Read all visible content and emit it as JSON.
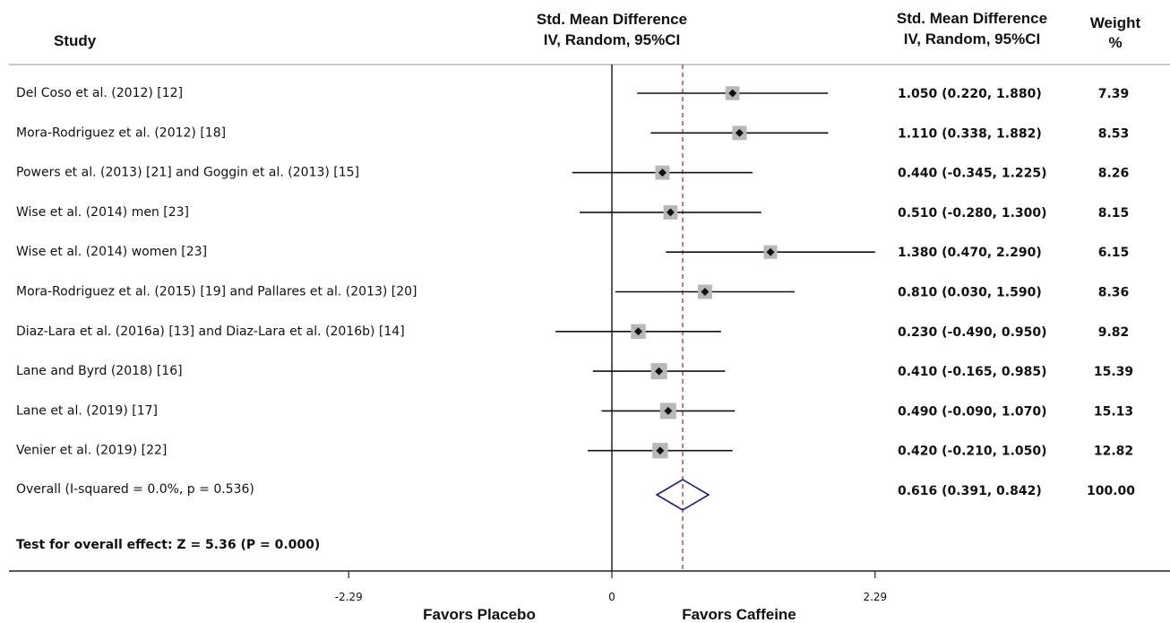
{
  "headers": {
    "study": "Study",
    "plot_line1": "Std. Mean Difference",
    "plot_line2": "IV, Random, 95%CI",
    "est_line1": "Std. Mean Difference",
    "est_line2": "IV, Random, 95%CI",
    "weight_line1": "Weight",
    "weight_line2": "%"
  },
  "footer": {
    "test_overall": "Test for overall effect: Z = 5.36 (P = 0.000)",
    "favors_left": "Favors Placebo",
    "favors_right": "Favors Caffeine"
  },
  "chart_data": {
    "type": "forest",
    "xaxis": {
      "ticks": [
        -2.29,
        0,
        2.29
      ],
      "tick_labels": [
        "-2.29",
        "0",
        "2.29"
      ],
      "null_line": 0,
      "display_range": [
        -2.29,
        2.29
      ]
    },
    "studies": [
      {
        "name": "Del Coso et al. (2012)  [12]",
        "est": 1.05,
        "lo": 0.22,
        "hi": 1.88,
        "est_text": "1.050 (0.220, 1.880)",
        "weight": "7.39"
      },
      {
        "name": "Mora-Rodriguez et al. (2012) [18]",
        "est": 1.11,
        "lo": 0.338,
        "hi": 1.882,
        "est_text": "1.110 (0.338, 1.882)",
        "weight": "8.53"
      },
      {
        "name": "Powers et al. (2013) [21] and Goggin et al. (2013) [15]",
        "est": 0.44,
        "lo": -0.345,
        "hi": 1.225,
        "est_text": "0.440 (-0.345, 1.225)",
        "weight": "8.26"
      },
      {
        "name": "Wise et al. (2014) men [23]",
        "est": 0.51,
        "lo": -0.28,
        "hi": 1.3,
        "est_text": "0.510 (-0.280, 1.300)",
        "weight": "8.15"
      },
      {
        "name": "Wise et al. (2014) women [23]",
        "est": 1.38,
        "lo": 0.47,
        "hi": 2.29,
        "est_text": "1.380 (0.470, 2.290)",
        "weight": "6.15"
      },
      {
        "name": "Mora-Rodriguez et al. (2015) [19] and Pallares et al. (2013) [20]",
        "est": 0.81,
        "lo": 0.03,
        "hi": 1.59,
        "est_text": "0.810 (0.030, 1.590)",
        "weight": "8.36"
      },
      {
        "name": "Diaz-Lara et al. (2016a) [13] and Diaz-Lara et al. (2016b) [14]",
        "est": 0.23,
        "lo": -0.49,
        "hi": 0.95,
        "est_text": "0.230 (-0.490, 0.950)",
        "weight": "9.82"
      },
      {
        "name": "Lane and Byrd (2018) [16]",
        "est": 0.41,
        "lo": -0.165,
        "hi": 0.985,
        "est_text": "0.410 (-0.165, 0.985)",
        "weight": "15.39"
      },
      {
        "name": "Lane et al. (2019) [17]",
        "est": 0.49,
        "lo": -0.09,
        "hi": 1.07,
        "est_text": "0.490 (-0.090, 1.070)",
        "weight": "15.13"
      },
      {
        "name": "Venier et al. (2019) [22]",
        "est": 0.42,
        "lo": -0.21,
        "hi": 1.05,
        "est_text": "0.420 (-0.210, 1.050)",
        "weight": "12.82"
      }
    ],
    "overall": {
      "name": "Overall (I-squared = 0.0%, p = 0.536)",
      "est": 0.616,
      "lo": 0.391,
      "hi": 0.842,
      "est_text": "0.616 (0.391, 0.842)",
      "weight": "100.00"
    },
    "colors": {
      "overall_diamond": "#1a1a7a",
      "ref_line": "#b03030",
      "weight_box": "#b8b8b8"
    }
  }
}
